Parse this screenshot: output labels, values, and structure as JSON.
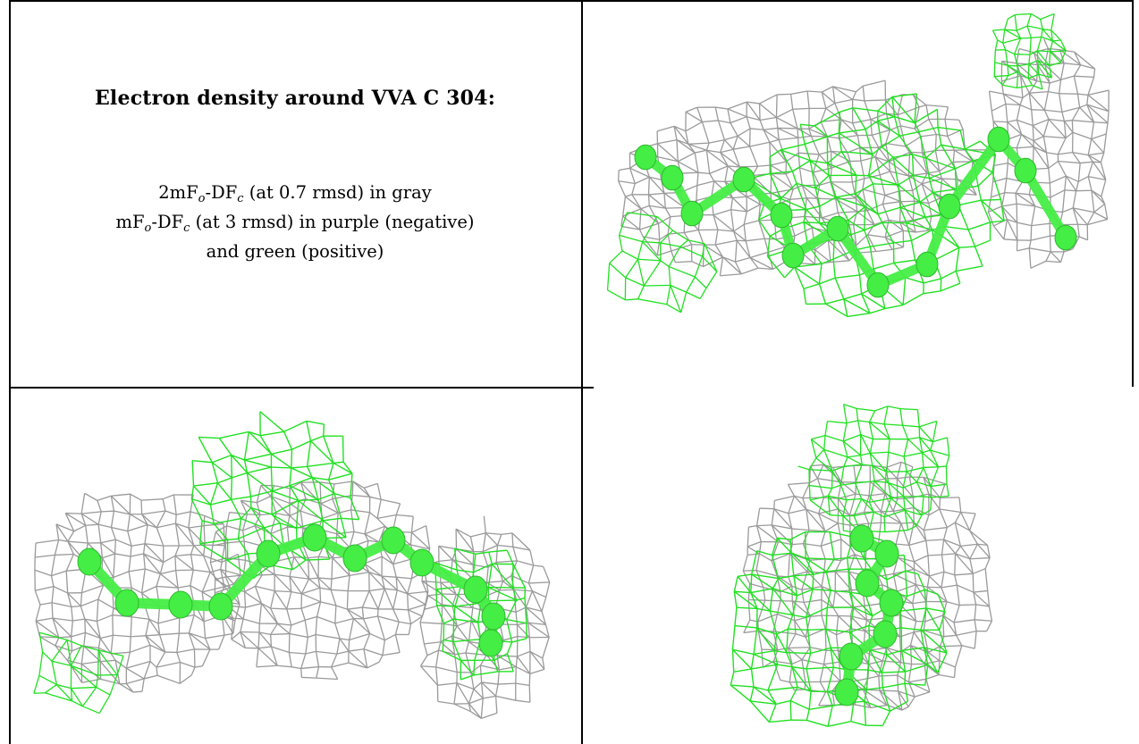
{
  "caption": {
    "title": "Electron density around VVA C 304:",
    "line1": {
      "pre": "2mF",
      "sub1": "o",
      "mid": "-DF",
      "sub2": "c",
      "post": " (at 0.7 rmsd) in gray"
    },
    "line2": {
      "pre": "mF",
      "sub1": "o",
      "mid": "-DF",
      "sub2": "c",
      "post": " (at 3 rmsd) in purple (negative)"
    },
    "line3": "and green (positive)"
  },
  "panels": [
    {
      "id": "top-right",
      "description": "density mesh view 1"
    },
    {
      "id": "bottom-left",
      "description": "density mesh view 2"
    },
    {
      "id": "bottom-right",
      "description": "density mesh view 3"
    }
  ],
  "colors": {
    "gray_mesh": "#9a9a9a",
    "green_mesh": "#22e022",
    "ligand": "#44ee44"
  }
}
